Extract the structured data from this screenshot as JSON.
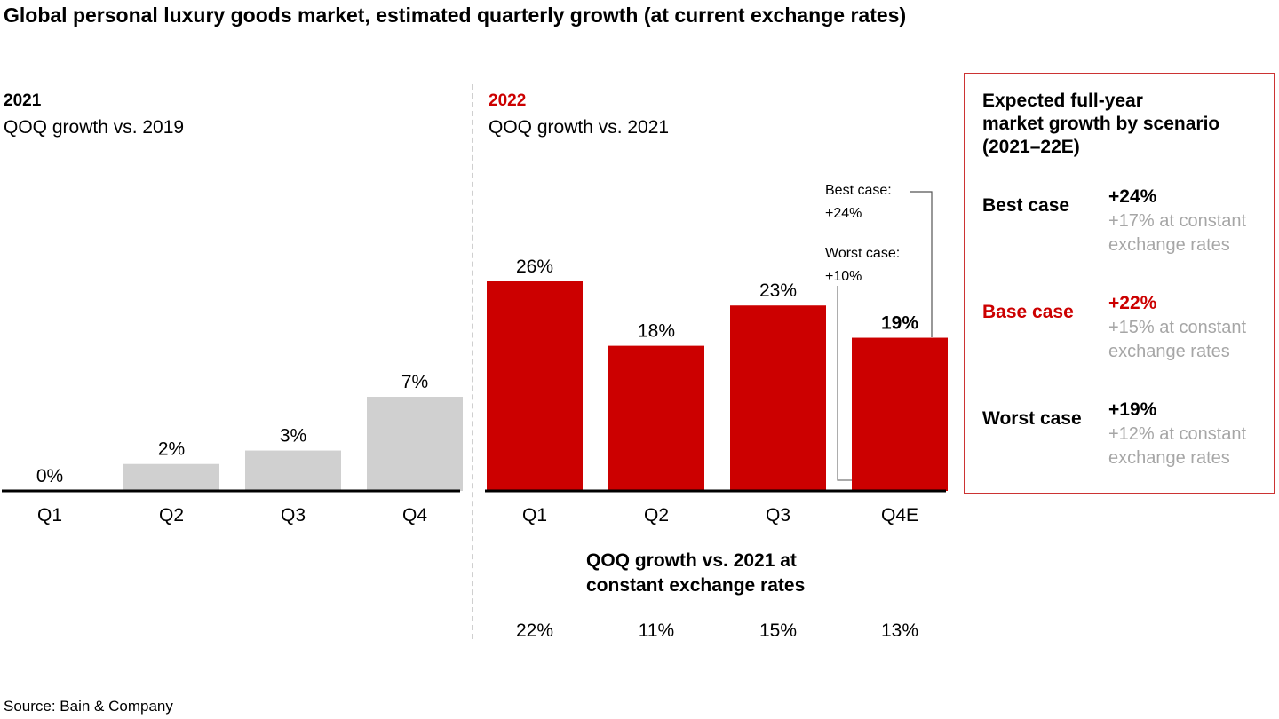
{
  "title": "Global personal luxury goods market, estimated quarterly growth (at current exchange rates)",
  "source": "Source: Bain & Company",
  "colors": {
    "accent": "#cc0000",
    "grey_bar": "#d0d0d0",
    "note_grey": "#a6a6a6",
    "box_border": "#cc3333"
  },
  "chart_data": [
    {
      "type": "bar",
      "title": "2021",
      "subtitle": "QOQ growth vs. 2019",
      "categories": [
        "Q1",
        "Q2",
        "Q3",
        "Q4"
      ],
      "values": [
        0,
        2,
        3,
        7
      ],
      "value_labels": [
        "0%",
        "2%",
        "3%",
        "7%"
      ],
      "unit": "%",
      "color": "#d0d0d0",
      "ylim": [
        0,
        7
      ],
      "grid": false
    },
    {
      "type": "bar",
      "title": "2022",
      "subtitle": "QOQ growth vs. 2021",
      "categories": [
        "Q1",
        "Q2",
        "Q3",
        "Q4E"
      ],
      "values": [
        26,
        18,
        23,
        19
      ],
      "value_labels": [
        "26%",
        "18%",
        "23%",
        "19%"
      ],
      "unit": "%",
      "color": "#cc0000",
      "ylim": [
        0,
        26
      ],
      "grid": false,
      "annotations": [
        {
          "label_line1": "Best case:",
          "label_line2": "+24%",
          "value": 24
        },
        {
          "label_line1": "Worst case:",
          "label_line2": "+10%",
          "value": 10
        }
      ],
      "constant_fx": {
        "heading_line1": "QOQ growth vs. 2021 at",
        "heading_line2": "constant exchange rates",
        "values": [
          22,
          11,
          15,
          13
        ],
        "labels": [
          "22%",
          "11%",
          "15%",
          "13%"
        ]
      }
    }
  ],
  "scenario_box": {
    "title_lines": [
      "Expected full-year",
      "market growth by scenario",
      "(2021–22E)"
    ],
    "scenarios": [
      {
        "name": "Best case",
        "value": "+24%",
        "note_line1": "+17% at constant",
        "note_line2": "exchange rates"
      },
      {
        "name": "Base case",
        "value": "+22%",
        "note_line1": "+15% at constant",
        "note_line2": "exchange rates"
      },
      {
        "name": "Worst case",
        "value": "+19%",
        "note_line1": "+12% at constant",
        "note_line2": "exchange rates"
      }
    ]
  }
}
